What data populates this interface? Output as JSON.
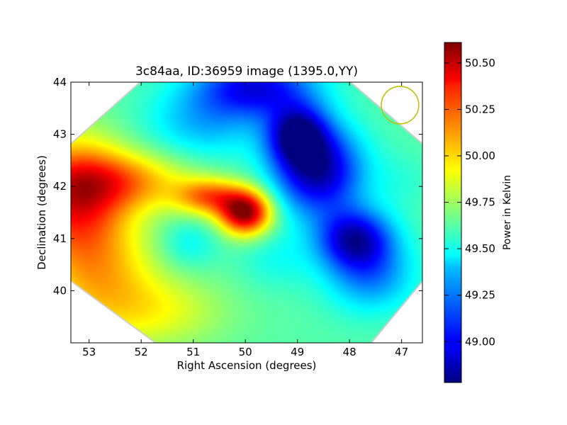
{
  "chart_data": {
    "type": "heatmap",
    "title": "3c84aa, ID:36959 image (1395.0,YY)",
    "xlabel": "Right Ascension (degrees)",
    "ylabel": "Declination (degrees)",
    "xlim": [
      53.35,
      46.6
    ],
    "ylim": [
      39.0,
      44.0
    ],
    "x_ticks": [
      53,
      52,
      51,
      50,
      49,
      48,
      47
    ],
    "x_tick_labels": [
      "53",
      "52",
      "51",
      "50",
      "49",
      "48",
      "47"
    ],
    "y_ticks": [
      40,
      41,
      42,
      43,
      44
    ],
    "y_tick_labels": [
      "40",
      "41",
      "42",
      "43",
      "44"
    ],
    "grid": false,
    "colormap": "jet",
    "colorbar": {
      "label": "Power in Kelvin",
      "range": [
        48.78,
        50.61
      ],
      "ticks": [
        49.0,
        49.25,
        49.5,
        49.75,
        50.0,
        50.25,
        50.5
      ],
      "tick_labels": [
        "49.00",
        "49.25",
        "49.50",
        "49.75",
        "50.00",
        "50.25",
        "50.50"
      ]
    },
    "background_level": 49.62,
    "features": [
      {
        "ra": 50.0,
        "dec": 41.5,
        "value": 50.6,
        "sigma_ra": 0.35,
        "sigma_dec": 0.3
      },
      {
        "ra": 50.7,
        "dec": 41.8,
        "value": 50.15,
        "sigma_ra": 0.45,
        "sigma_dec": 0.25
      },
      {
        "ra": 53.3,
        "dec": 41.8,
        "value": 50.3,
        "sigma_ra": 0.7,
        "sigma_dec": 0.8
      },
      {
        "ra": 52.3,
        "dec": 42.1,
        "value": 50.05,
        "sigma_ra": 0.9,
        "sigma_dec": 0.4
      },
      {
        "ra": 52.8,
        "dec": 40.3,
        "value": 50.0,
        "sigma_ra": 0.8,
        "sigma_dec": 0.8
      },
      {
        "ra": 51.6,
        "dec": 39.6,
        "value": 49.85,
        "sigma_ra": 0.9,
        "sigma_dec": 0.5
      },
      {
        "ra": 48.6,
        "dec": 42.3,
        "value": 48.85,
        "sigma_ra": 0.6,
        "sigma_dec": 0.6
      },
      {
        "ra": 49.0,
        "dec": 43.0,
        "value": 48.92,
        "sigma_ra": 0.4,
        "sigma_dec": 0.4
      },
      {
        "ra": 47.9,
        "dec": 41.0,
        "value": 48.95,
        "sigma_ra": 0.5,
        "sigma_dec": 0.4
      },
      {
        "ra": 49.8,
        "dec": 43.9,
        "value": 49.0,
        "sigma_ra": 0.8,
        "sigma_dec": 0.4
      },
      {
        "ra": 50.8,
        "dec": 43.2,
        "value": 49.35,
        "sigma_ra": 0.8,
        "sigma_dec": 0.5
      },
      {
        "ra": 47.0,
        "dec": 42.1,
        "value": 49.55,
        "sigma_ra": 0.4,
        "sigma_dec": 0.4
      },
      {
        "ra": 47.6,
        "dec": 40.3,
        "value": 49.25,
        "sigma_ra": 0.6,
        "sigma_dec": 0.5
      },
      {
        "ra": 51.1,
        "dec": 40.9,
        "value": 49.45,
        "sigma_ra": 0.4,
        "sigma_dec": 0.35
      },
      {
        "ra": 49.4,
        "dec": 40.6,
        "value": 49.5,
        "sigma_ra": 0.5,
        "sigma_dec": 0.4
      }
    ],
    "beam_circle": {
      "ra": 47.03,
      "dec": 43.56,
      "radius_deg": 0.36,
      "color": "#bfbf00"
    },
    "polygon_border": [
      [
        52.0,
        44.0
      ],
      [
        48.0,
        44.0
      ],
      [
        46.6,
        42.8
      ],
      [
        46.6,
        40.2
      ],
      [
        47.6,
        39.0
      ],
      [
        51.7,
        39.0
      ],
      [
        53.35,
        40.2
      ],
      [
        53.35,
        42.8
      ]
    ]
  }
}
